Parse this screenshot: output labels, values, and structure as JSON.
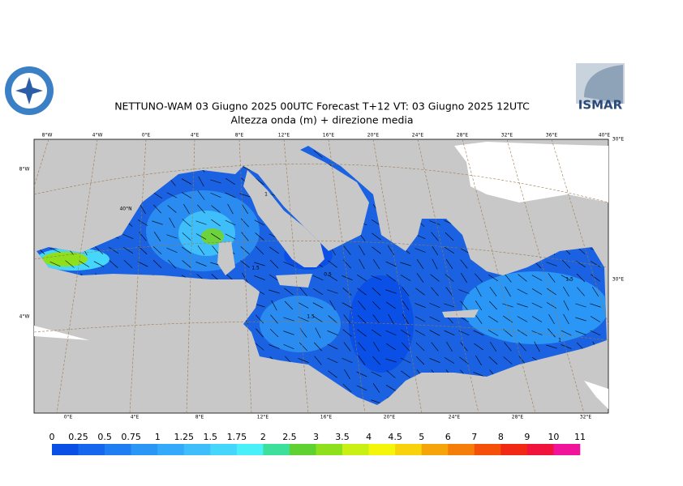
{
  "header": {
    "title": "NETTUNO-WAM  03   Giugno  2025 00UTC Forecast T+12 VT: 03   Giugno  2025 12UTC",
    "subtitle": "Altezza onda (m) + direzione media"
  },
  "logos": {
    "right_text": "ISMAR"
  },
  "map": {
    "lon_labels_top": [
      "8°W",
      "4°W",
      "0°E",
      "4°E",
      "8°E",
      "12°E",
      "16°E",
      "20°E",
      "24°E",
      "28°E",
      "32°E",
      "36°E",
      "40°E"
    ],
    "lon_labels_bottom": [
      "0°E",
      "4°E",
      "8°E",
      "12°E",
      "16°E",
      "20°E",
      "24°E",
      "28°E",
      "32°E"
    ],
    "lat_labels": [
      "8°W",
      "4°W",
      "40°N",
      "30°E",
      "30°E"
    ],
    "contour_labels": [
      "1.5",
      "1.5",
      "0.5",
      "1",
      "1.5",
      "1"
    ]
  },
  "colorbar": {
    "levels": [
      0,
      0.25,
      0.5,
      0.75,
      1,
      1.25,
      1.5,
      1.75,
      2,
      2.5,
      3,
      3.5,
      4,
      4.5,
      5,
      6,
      7,
      8,
      9,
      10,
      11
    ],
    "colors": [
      "#0a4fe6",
      "#1766ee",
      "#1f7ff2",
      "#2a96f6",
      "#35aafa",
      "#3fbefc",
      "#45d6fc",
      "#4af0f8",
      "#3ce09a",
      "#5fd232",
      "#8ee01c",
      "#c8f014",
      "#f5f50a",
      "#f8d20a",
      "#f5a50a",
      "#f57d0a",
      "#f5500a",
      "#f02814",
      "#f0143c",
      "#f0149b"
    ]
  }
}
